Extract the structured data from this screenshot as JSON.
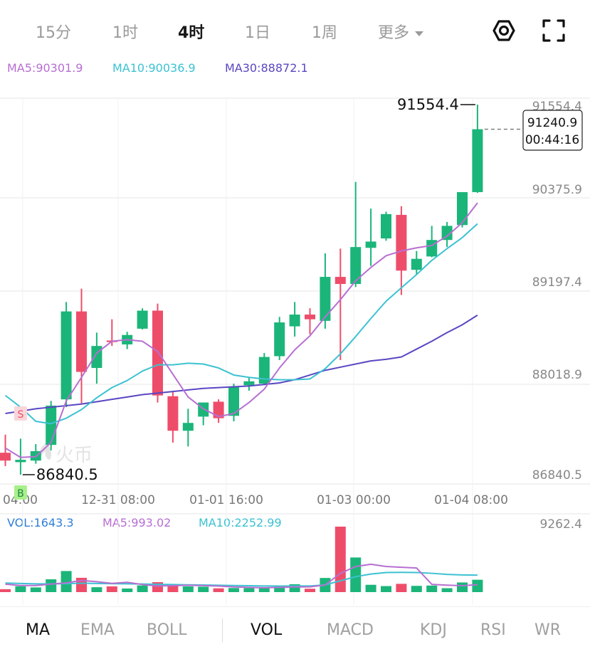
{
  "timeframes": [
    {
      "label": "15分",
      "active": false
    },
    {
      "label": "1时",
      "active": false
    },
    {
      "label": "4时",
      "active": true
    },
    {
      "label": "1日",
      "active": false
    },
    {
      "label": "1周",
      "active": false
    },
    {
      "label": "更多",
      "active": false,
      "dropdown": true
    }
  ],
  "icons": {
    "settings": "settings-hex-icon",
    "fullscreen": "fullscreen-icon"
  },
  "ma_legend": {
    "ma5": "MA5:90301.9",
    "ma10": "MA10:90036.9",
    "ma30": "MA30:88872.1"
  },
  "vol_legend": {
    "vol": "VOL:1643.3",
    "ma5": "MA5:993.02",
    "ma10": "MA10:2252.99"
  },
  "colors": {
    "up": "#1bb57a",
    "down": "#ee4d6a",
    "ma5": "#b76fd1",
    "ma10": "#3cc2d2",
    "ma30": "#5a47c2",
    "vol_label": "#2f7fd8",
    "grid": "#e6e6e6",
    "axis_text": "#888888"
  },
  "chart_data": {
    "type": "candlestick",
    "y_ticks": [
      "91554.4",
      "90375.9",
      "89197.4",
      "88018.9",
      "86840.5"
    ],
    "ylim": [
      86840.5,
      91554.4
    ],
    "x_labels": [
      "04:00",
      "12-31 08:00",
      "01-01 16:00",
      "01-03 00:00",
      "01-04 08:00"
    ],
    "high_label": "91554.4",
    "low_label": "86840.5",
    "current_price": {
      "price": "91240.9",
      "countdown": "00:44:16"
    },
    "vol_axis_label": "9262.4",
    "watermark": "火币",
    "markers": [
      {
        "label": "S",
        "index": 1
      },
      {
        "label": "B",
        "index": 1
      }
    ],
    "candles": [
      {
        "o": 87120,
        "h": 87350,
        "l": 86950,
        "c": 87020
      },
      {
        "o": 87000,
        "h": 87300,
        "l": 86840.5,
        "c": 87030
      },
      {
        "o": 87020,
        "h": 87230,
        "l": 86980,
        "c": 87140
      },
      {
        "o": 87220,
        "h": 87780,
        "l": 87150,
        "c": 87720
      },
      {
        "o": 87800,
        "h": 89040,
        "l": 87700,
        "c": 88920
      },
      {
        "o": 88920,
        "h": 89210,
        "l": 87750,
        "c": 88150
      },
      {
        "o": 88200,
        "h": 88650,
        "l": 88000,
        "c": 88480
      },
      {
        "o": 88550,
        "h": 88820,
        "l": 88480,
        "c": 88530
      },
      {
        "o": 88500,
        "h": 88660,
        "l": 88440,
        "c": 88620
      },
      {
        "o": 88700,
        "h": 88960,
        "l": 88690,
        "c": 88930
      },
      {
        "o": 88930,
        "h": 89020,
        "l": 87760,
        "c": 87850
      },
      {
        "o": 87840,
        "h": 87900,
        "l": 87250,
        "c": 87400
      },
      {
        "o": 87400,
        "h": 87680,
        "l": 87200,
        "c": 87500
      },
      {
        "o": 87580,
        "h": 87730,
        "l": 87470,
        "c": 87760
      },
      {
        "o": 87770,
        "h": 87800,
        "l": 87500,
        "c": 87560
      },
      {
        "o": 87590,
        "h": 88000,
        "l": 87520,
        "c": 87960
      },
      {
        "o": 87980,
        "h": 88080,
        "l": 87910,
        "c": 88030
      },
      {
        "o": 88000,
        "h": 88390,
        "l": 87980,
        "c": 88340
      },
      {
        "o": 88350,
        "h": 88850,
        "l": 88300,
        "c": 88780
      },
      {
        "o": 88730,
        "h": 89040,
        "l": 88600,
        "c": 88880
      },
      {
        "o": 88880,
        "h": 88960,
        "l": 88630,
        "c": 88820
      },
      {
        "o": 88800,
        "h": 89660,
        "l": 88700,
        "c": 89360
      },
      {
        "o": 89360,
        "h": 89720,
        "l": 88300,
        "c": 89270
      },
      {
        "o": 89270,
        "h": 90570,
        "l": 89230,
        "c": 89740
      },
      {
        "o": 89730,
        "h": 90230,
        "l": 89500,
        "c": 89810
      },
      {
        "o": 89850,
        "h": 90190,
        "l": 89820,
        "c": 90160
      },
      {
        "o": 90150,
        "h": 90260,
        "l": 89130,
        "c": 89440
      },
      {
        "o": 89450,
        "h": 89690,
        "l": 89390,
        "c": 89590
      },
      {
        "o": 89620,
        "h": 90010,
        "l": 89610,
        "c": 89830
      },
      {
        "o": 89830,
        "h": 90060,
        "l": 89740,
        "c": 90010
      },
      {
        "o": 90020,
        "h": 90420,
        "l": 89990,
        "c": 90440
      },
      {
        "o": 90440,
        "h": 91554.4,
        "l": 90430,
        "c": 91240.9
      }
    ],
    "ma5": [
      87180,
      87060,
      87070,
      87250,
      87780,
      88080,
      88390,
      88540,
      88560,
      88540,
      88410,
      88120,
      87830,
      87680,
      87580,
      87620,
      87760,
      87930,
      88200,
      88430,
      88610,
      88850,
      89070,
      89310,
      89480,
      89630,
      89690,
      89730,
      89760,
      89880,
      90050,
      90302
    ],
    "ma10": [
      87850,
      87700,
      87520,
      87490,
      87560,
      87670,
      87820,
      87950,
      88040,
      88160,
      88240,
      88240,
      88260,
      88250,
      88200,
      88110,
      88080,
      88060,
      88050,
      88050,
      88060,
      88190,
      88380,
      88600,
      88830,
      89050,
      89220,
      89390,
      89570,
      89720,
      89860,
      90037
    ],
    "ma30": [
      87620,
      87650,
      87680,
      87700,
      87720,
      87740,
      87770,
      87800,
      87830,
      87860,
      87880,
      87900,
      87920,
      87940,
      87950,
      87960,
      87970,
      87990,
      88010,
      88050,
      88110,
      88170,
      88210,
      88250,
      88290,
      88310,
      88340,
      88440,
      88540,
      88650,
      88750,
      88872
    ],
    "volume": [
      390,
      780,
      620,
      1700,
      2800,
      1900,
      650,
      760,
      480,
      890,
      1320,
      950,
      760,
      720,
      500,
      540,
      540,
      560,
      900,
      1050,
      450,
      1880,
      8700,
      4600,
      970,
      800,
      1100,
      830,
      870,
      520,
      1280,
      1643.3
    ],
    "vol_ma5": [
      1050,
      880,
      870,
      1060,
      1230,
      1550,
      1380,
      1160,
      1300,
      1010,
      800,
      860,
      910,
      860,
      800,
      690,
      630,
      580,
      630,
      690,
      700,
      940,
      2500,
      3400,
      3700,
      3400,
      3300,
      3200,
      1030,
      920,
      850,
      993.02
    ],
    "vol_ma10": [
      1200,
      1150,
      1100,
      1090,
      1120,
      1180,
      1150,
      1120,
      1100,
      1080,
      1040,
      1000,
      970,
      940,
      910,
      880,
      850,
      820,
      800,
      810,
      820,
      960,
      1500,
      2050,
      2400,
      2600,
      2620,
      2600,
      2500,
      2350,
      2280,
      2252.99
    ]
  },
  "indicators": {
    "main": [
      {
        "label": "MA",
        "active": true
      },
      {
        "label": "EMA",
        "active": false
      },
      {
        "label": "BOLL",
        "active": false
      }
    ],
    "sub": [
      {
        "label": "VOL",
        "active": true
      },
      {
        "label": "MACD",
        "active": false
      },
      {
        "label": "KDJ",
        "active": false
      },
      {
        "label": "RSI",
        "active": false
      },
      {
        "label": "WR",
        "active": false
      }
    ]
  }
}
